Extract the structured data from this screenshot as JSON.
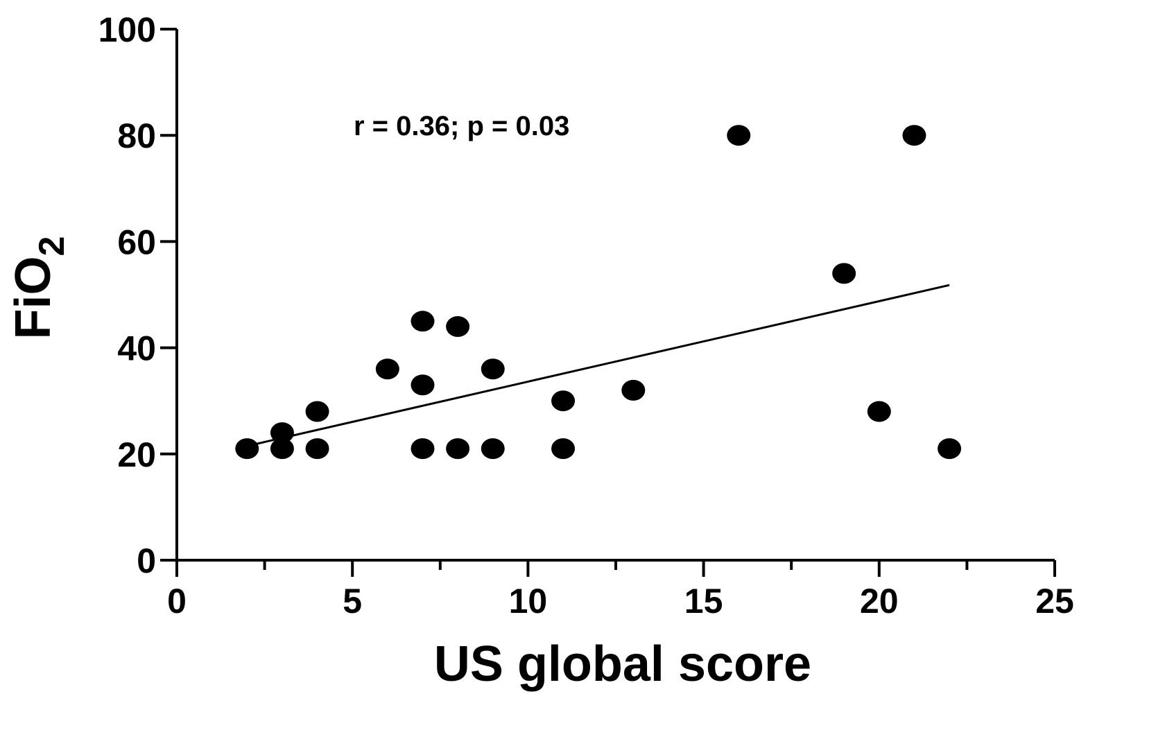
{
  "chart_data": {
    "type": "scatter",
    "xlabel": "US global score",
    "ylabel": "FiO",
    "ylabel_subscript": "2",
    "xlim": [
      0,
      25
    ],
    "ylim": [
      0,
      100
    ],
    "xticks": [
      0,
      5,
      10,
      15,
      20,
      25
    ],
    "xticks_minor": [
      2.5,
      7.5,
      12.5,
      17.5,
      22.5
    ],
    "yticks": [
      0,
      20,
      40,
      60,
      80,
      100
    ],
    "grid": false,
    "annotation": "r = 0.36; p = 0.03",
    "series": [
      {
        "points": [
          {
            "x": 2,
            "y": 21
          },
          {
            "x": 3,
            "y": 21
          },
          {
            "x": 3,
            "y": 24
          },
          {
            "x": 4,
            "y": 21
          },
          {
            "x": 4,
            "y": 28
          },
          {
            "x": 6,
            "y": 36
          },
          {
            "x": 7,
            "y": 21
          },
          {
            "x": 7,
            "y": 33
          },
          {
            "x": 7,
            "y": 45
          },
          {
            "x": 8,
            "y": 21
          },
          {
            "x": 8,
            "y": 44
          },
          {
            "x": 9,
            "y": 21
          },
          {
            "x": 9,
            "y": 36
          },
          {
            "x": 11,
            "y": 21
          },
          {
            "x": 11,
            "y": 30
          },
          {
            "x": 13,
            "y": 32
          },
          {
            "x": 16,
            "y": 80
          },
          {
            "x": 19,
            "y": 54
          },
          {
            "x": 20,
            "y": 28
          },
          {
            "x": 21,
            "y": 80
          },
          {
            "x": 22,
            "y": 21
          }
        ],
        "color": "#000000"
      }
    ],
    "regression_line": {
      "x": [
        2,
        22
      ],
      "y": [
        21.5,
        51.8
      ],
      "color": "#000000"
    }
  }
}
